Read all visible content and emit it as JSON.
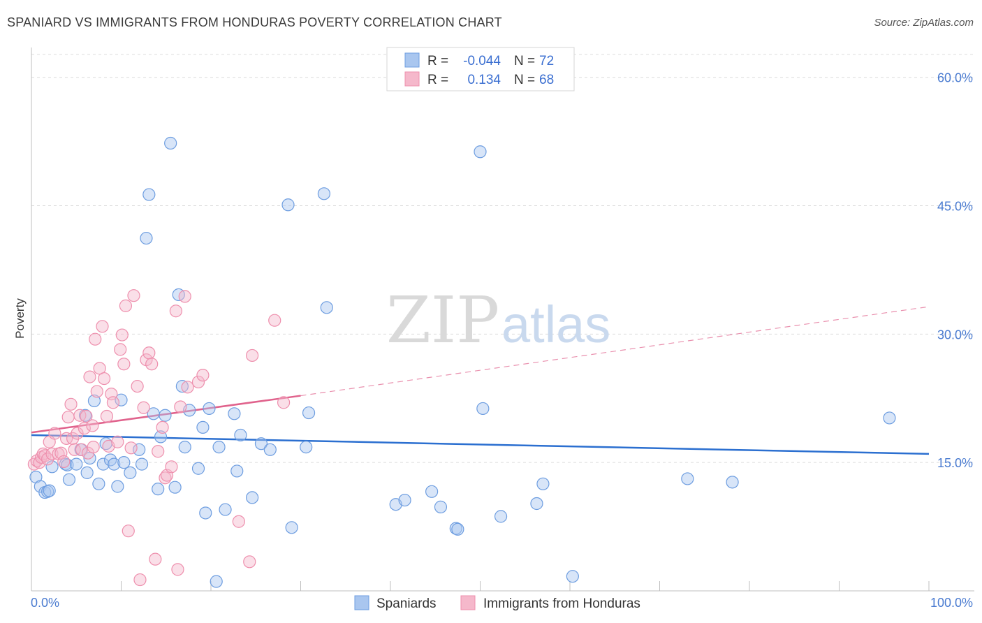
{
  "title": "SPANIARD VS IMMIGRANTS FROM HONDURAS POVERTY CORRELATION CHART",
  "source": "Source: ZipAtlas.com",
  "watermark": {
    "zip": "ZIP",
    "atlas": "atlas"
  },
  "legend": {
    "r_label": "R =",
    "n_label": "N =",
    "rows": [
      {
        "r": "-0.044",
        "n": "72",
        "color": "#a9c6ef"
      },
      {
        "r": "0.134",
        "n": "68",
        "color": "#f5b8cb"
      }
    ]
  },
  "chart_data": {
    "type": "scatter",
    "title": "SPANIARD VS IMMIGRANTS FROM HONDURAS POVERTY CORRELATION CHART",
    "xlabel": "",
    "ylabel": "Poverty",
    "xlim": [
      0,
      100
    ],
    "ylim": [
      0,
      60
    ],
    "x_tick_labels": [
      "0.0%",
      "100.0%"
    ],
    "y_ticks": [
      15,
      30,
      45,
      60
    ],
    "y_tick_labels": [
      "15.0%",
      "30.0%",
      "45.0%",
      "60.0%"
    ],
    "grid": true,
    "legend_position": "top-center",
    "series": [
      {
        "name": "Spaniards",
        "color": "#6d9de0",
        "fill": "#a9c6ef",
        "r": -0.044,
        "n": 72,
        "trend": {
          "x": [
            0,
            100
          ],
          "y": [
            18.2,
            16.0
          ],
          "style": "solid",
          "color": "#2b6fd0"
        },
        "points": [
          [
            0.5,
            13.3
          ],
          [
            1.0,
            12.2
          ],
          [
            1.5,
            11.5
          ],
          [
            1.8,
            11.6
          ],
          [
            2.0,
            11.7
          ],
          [
            2.3,
            14.5
          ],
          [
            3.8,
            14.8
          ],
          [
            4.0,
            14.7
          ],
          [
            4.2,
            13.0
          ],
          [
            5.0,
            14.8
          ],
          [
            5.5,
            16.5
          ],
          [
            6.0,
            20.5
          ],
          [
            6.2,
            13.8
          ],
          [
            6.5,
            15.5
          ],
          [
            7.0,
            22.2
          ],
          [
            7.5,
            12.5
          ],
          [
            8.0,
            14.8
          ],
          [
            8.3,
            17.2
          ],
          [
            8.8,
            15.3
          ],
          [
            9.2,
            14.8
          ],
          [
            9.6,
            12.2
          ],
          [
            10.0,
            22.3
          ],
          [
            10.3,
            15.0
          ],
          [
            11.0,
            13.8
          ],
          [
            12.0,
            16.5
          ],
          [
            12.3,
            14.8
          ],
          [
            12.8,
            41.2
          ],
          [
            13.1,
            46.3
          ],
          [
            13.6,
            20.7
          ],
          [
            14.1,
            11.9
          ],
          [
            14.4,
            18.0
          ],
          [
            14.9,
            20.5
          ],
          [
            15.5,
            52.3
          ],
          [
            16.0,
            12.1
          ],
          [
            16.4,
            34.6
          ],
          [
            16.8,
            23.9
          ],
          [
            17.1,
            16.8
          ],
          [
            17.6,
            21.1
          ],
          [
            18.6,
            14.3
          ],
          [
            19.1,
            19.1
          ],
          [
            19.4,
            9.1
          ],
          [
            19.8,
            21.3
          ],
          [
            20.6,
            1.1
          ],
          [
            20.9,
            16.8
          ],
          [
            21.6,
            9.5
          ],
          [
            22.6,
            20.7
          ],
          [
            22.9,
            14.0
          ],
          [
            23.3,
            18.2
          ],
          [
            24.6,
            10.9
          ],
          [
            25.6,
            17.2
          ],
          [
            26.6,
            16.5
          ],
          [
            28.6,
            45.1
          ],
          [
            29.0,
            7.4
          ],
          [
            30.6,
            16.8
          ],
          [
            30.9,
            20.8
          ],
          [
            32.6,
            46.4
          ],
          [
            32.9,
            33.1
          ],
          [
            40.6,
            10.1
          ],
          [
            41.6,
            10.6
          ],
          [
            44.6,
            11.6
          ],
          [
            45.6,
            9.8
          ],
          [
            47.3,
            7.3
          ],
          [
            47.5,
            7.2
          ],
          [
            50.0,
            51.3
          ],
          [
            50.3,
            21.3
          ],
          [
            52.3,
            8.7
          ],
          [
            56.3,
            10.2
          ],
          [
            57.0,
            12.5
          ],
          [
            60.3,
            1.7
          ],
          [
            73.1,
            13.1
          ],
          [
            78.1,
            12.7
          ],
          [
            95.6,
            20.2
          ]
        ]
      },
      {
        "name": "Immigrants from Honduras",
        "color": "#ee8fad",
        "fill": "#f5b8cb",
        "r": 0.134,
        "n": 68,
        "trend": {
          "x": [
            0,
            30,
            100
          ],
          "y": [
            18.5,
            22.8,
            33.2
          ],
          "style": "solid-then-dashed",
          "solid_until_x": 30,
          "color": "#e0628c"
        },
        "points": [
          [
            0.3,
            14.8
          ],
          [
            0.6,
            15.2
          ],
          [
            0.9,
            15.0
          ],
          [
            1.1,
            15.6
          ],
          [
            1.3,
            16.0
          ],
          [
            1.5,
            15.8
          ],
          [
            1.8,
            15.4
          ],
          [
            2.0,
            17.4
          ],
          [
            2.3,
            16.0
          ],
          [
            2.6,
            18.4
          ],
          [
            3.0,
            16.0
          ],
          [
            3.3,
            16.1
          ],
          [
            3.6,
            15.1
          ],
          [
            3.9,
            17.8
          ],
          [
            4.1,
            20.3
          ],
          [
            4.4,
            21.8
          ],
          [
            4.6,
            17.8
          ],
          [
            4.8,
            16.5
          ],
          [
            5.1,
            18.4
          ],
          [
            5.4,
            20.5
          ],
          [
            5.6,
            16.5
          ],
          [
            5.9,
            19.0
          ],
          [
            6.1,
            20.4
          ],
          [
            6.3,
            16.1
          ],
          [
            6.5,
            25.0
          ],
          [
            6.8,
            19.3
          ],
          [
            6.9,
            16.8
          ],
          [
            7.1,
            29.4
          ],
          [
            7.3,
            23.3
          ],
          [
            7.6,
            26.0
          ],
          [
            7.9,
            30.9
          ],
          [
            8.1,
            24.8
          ],
          [
            8.4,
            20.4
          ],
          [
            8.6,
            16.9
          ],
          [
            8.9,
            23.0
          ],
          [
            9.1,
            22.0
          ],
          [
            9.6,
            17.4
          ],
          [
            9.9,
            28.2
          ],
          [
            10.1,
            29.9
          ],
          [
            10.3,
            26.5
          ],
          [
            10.5,
            33.3
          ],
          [
            10.8,
            7.0
          ],
          [
            11.1,
            16.7
          ],
          [
            11.4,
            34.5
          ],
          [
            11.8,
            23.9
          ],
          [
            12.1,
            1.3
          ],
          [
            12.5,
            21.4
          ],
          [
            12.8,
            27.0
          ],
          [
            13.1,
            27.8
          ],
          [
            13.4,
            26.5
          ],
          [
            13.8,
            3.7
          ],
          [
            14.1,
            16.3
          ],
          [
            14.6,
            19.1
          ],
          [
            14.9,
            13.2
          ],
          [
            15.1,
            13.5
          ],
          [
            15.6,
            14.5
          ],
          [
            16.1,
            32.7
          ],
          [
            16.3,
            2.5
          ],
          [
            16.6,
            21.5
          ],
          [
            17.1,
            34.4
          ],
          [
            17.4,
            23.8
          ],
          [
            18.6,
            24.4
          ],
          [
            19.1,
            25.2
          ],
          [
            23.1,
            8.1
          ],
          [
            24.3,
            3.4
          ],
          [
            24.6,
            27.5
          ],
          [
            27.1,
            31.6
          ],
          [
            28.1,
            22.0
          ]
        ]
      }
    ]
  },
  "bottom_legend": [
    {
      "label": "Spaniards",
      "fill": "#a9c6ef",
      "stroke": "#6d9de0"
    },
    {
      "label": "Immigrants from Honduras",
      "fill": "#f5b8cb",
      "stroke": "#ee8fad"
    }
  ]
}
